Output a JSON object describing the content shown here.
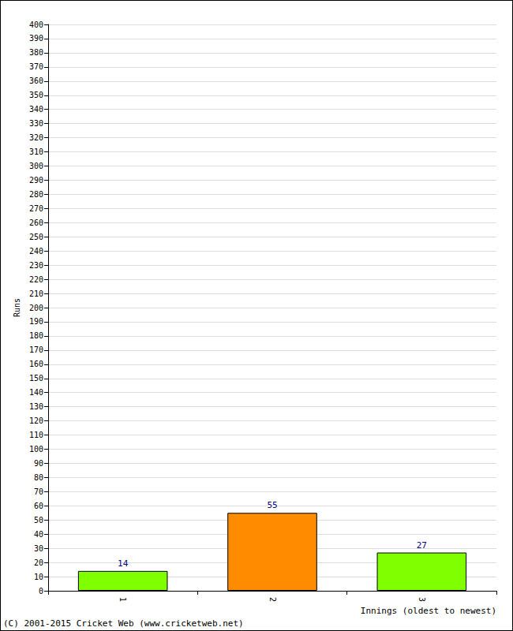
{
  "chart_data": {
    "type": "bar",
    "categories": [
      "1",
      "2",
      "3"
    ],
    "values": [
      14,
      55,
      27
    ],
    "colors": [
      "#80ff00",
      "#ff8c00",
      "#80ff00"
    ],
    "x_label": "Innings (oldest to newest)",
    "y_label": "Runs",
    "annotations": [
      "(C) 2001-2015 Cricket Web (www.cricketweb.net)"
    ],
    "ylim": [
      0,
      400
    ],
    "yticks": [
      0,
      10,
      20,
      30,
      40,
      50,
      60,
      70,
      80,
      90,
      100,
      110,
      120,
      130,
      140,
      150,
      160,
      170,
      180,
      190,
      200,
      210,
      220,
      230,
      240,
      250,
      260,
      270,
      280,
      290,
      300,
      310,
      320,
      330,
      340,
      350,
      360,
      370,
      380,
      390,
      400
    ],
    "grid": true,
    "data_labels": true
  }
}
